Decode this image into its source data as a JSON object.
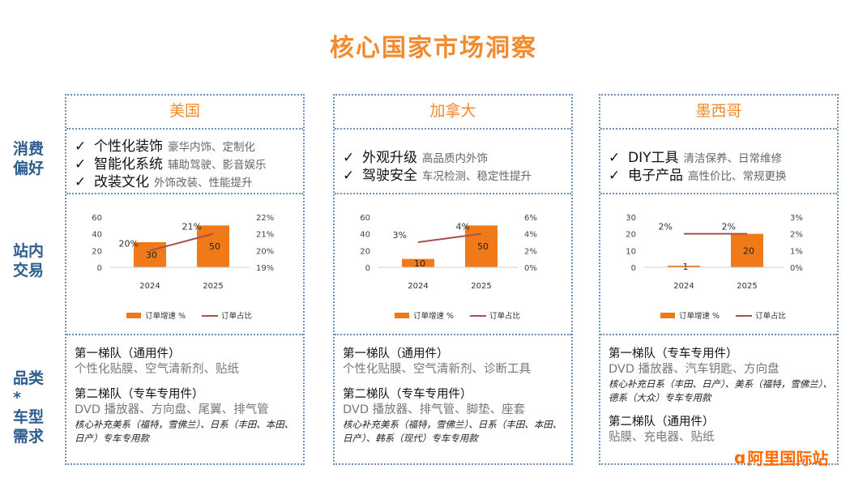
{
  "title": "核心国家市场洞察",
  "row_labels": {
    "consumer": [
      "消费",
      "偏好"
    ],
    "trade": [
      "站内",
      "交易"
    ],
    "category": [
      "品类*",
      "车型",
      "需求"
    ]
  },
  "colors": {
    "accent": "#f28a2e",
    "bar": "#f07a1a",
    "line": "#a84f4f",
    "border": "#6f91b3",
    "label": "#2e5d8e"
  },
  "columns": [
    {
      "header": "美国",
      "prefs": [
        {
          "main": "个性化装饰",
          "sub": "豪华内饰、定制化"
        },
        {
          "main": "智能化系统",
          "sub": "辅助驾驶、影音娱乐"
        },
        {
          "main": "改装文化",
          "sub": "外饰改装、性能提升"
        }
      ],
      "demand": {
        "tier1_title": "第一梯队（通用件）",
        "tier1_items": "个性化贴膜、空气清新剂、贴纸",
        "tier2_title": "第二梯队（专车专用件）",
        "tier2_items": "DVD 播放器、方向盘、尾翼、排气管",
        "tier2_note": "核心补充美系（福特，雪佛兰）、日系（丰田、本田、日产）专车专用款"
      }
    },
    {
      "header": "加拿大",
      "prefs": [
        {
          "main": "外观升级",
          "sub": "高品质内外饰"
        },
        {
          "main": "驾驶安全",
          "sub": "车况检测、稳定性提升"
        }
      ],
      "demand": {
        "tier1_title": "第一梯队（通用件）",
        "tier1_items": "个性化贴膜、空气清新剂、诊断工具",
        "tier2_title": "第二梯队（专车专用件）",
        "tier2_items": "DVD 播放器、排气管、脚垫、座套",
        "tier2_note": "核心补充美系（福特，雪佛兰）、日系（丰田、本田、日产）、韩系（现代）专车专用款"
      }
    },
    {
      "header": "墨西哥",
      "prefs": [
        {
          "main": "DIY工具",
          "sub": "清洁保养、日常维修"
        },
        {
          "main": "电子产品",
          "sub": "高性价比、常规更换"
        }
      ],
      "demand": {
        "tier1_title": "第一梯队（专车专用件）",
        "tier1_items": "DVD 播放器、汽车钥匙、方向盘",
        "tier1_note": "核心补充日系（丰田、日产）、美系（福特，雪佛兰）、德系（大众）专车专用款",
        "tier2_title": "第二梯队（通用件）",
        "tier2_items": "贴膜、充电器、贴纸"
      }
    }
  ],
  "chart_data": [
    {
      "type": "bar",
      "categories": [
        "2024",
        "2025"
      ],
      "series": [
        {
          "name": "订单增速 %",
          "type": "bar",
          "axis": "left",
          "values": [
            30,
            50
          ],
          "labels": [
            "30",
            "50"
          ]
        },
        {
          "name": "订单占比",
          "type": "line",
          "axis": "right",
          "values": [
            20,
            21
          ],
          "labels": [
            "20%",
            "21%"
          ]
        }
      ],
      "y_left": {
        "min": 0,
        "max": 60,
        "ticks": [
          "0",
          "20",
          "40",
          "60"
        ]
      },
      "y_right": {
        "min": 19,
        "max": 22,
        "ticks": [
          "19%",
          "20%",
          "21%",
          "22%"
        ]
      },
      "legend": "bottom"
    },
    {
      "type": "bar",
      "categories": [
        "2024",
        "2025"
      ],
      "series": [
        {
          "name": "订单增速 %",
          "type": "bar",
          "axis": "left",
          "values": [
            10,
            50
          ],
          "labels": [
            "10",
            "50"
          ]
        },
        {
          "name": "订单占比",
          "type": "line",
          "axis": "right",
          "values": [
            3,
            4
          ],
          "labels": [
            "3%",
            "4%"
          ]
        }
      ],
      "y_left": {
        "min": 0,
        "max": 60,
        "ticks": [
          "0",
          "20",
          "40",
          "60"
        ]
      },
      "y_right": {
        "min": 0,
        "max": 6,
        "ticks": [
          "0%",
          "2%",
          "4%",
          "6%"
        ]
      },
      "legend": "bottom"
    },
    {
      "type": "bar",
      "categories": [
        "2024",
        "2025"
      ],
      "series": [
        {
          "name": "订单增速 %",
          "type": "bar",
          "axis": "left",
          "values": [
            1,
            20
          ],
          "labels": [
            "1",
            "20"
          ]
        },
        {
          "name": "订单占比",
          "type": "line",
          "axis": "right",
          "values": [
            2,
            2
          ],
          "labels": [
            "2%",
            "2%"
          ]
        }
      ],
      "y_left": {
        "min": 0,
        "max": 30,
        "ticks": [
          "0",
          "10",
          "20",
          "30"
        ]
      },
      "y_right": {
        "min": 0,
        "max": 3,
        "ticks": [
          "0%",
          "1%",
          "2%",
          "3%"
        ]
      },
      "legend": "bottom"
    }
  ],
  "logo": {
    "mark": "ɑ",
    "text": "阿里国际站"
  }
}
